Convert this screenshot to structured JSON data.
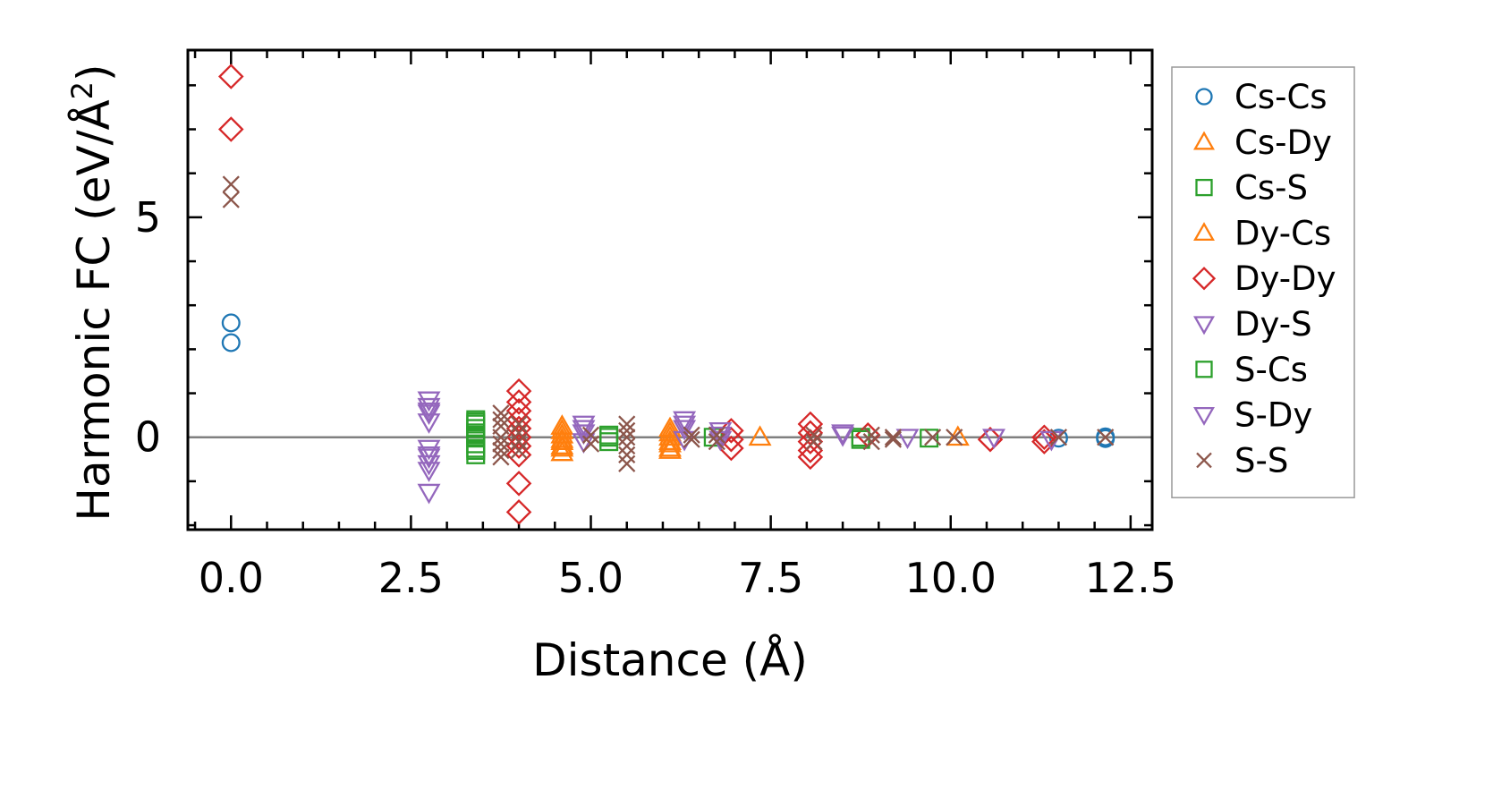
{
  "chart_data": {
    "type": "scatter",
    "title": "",
    "xlabel": "Distance (Å)",
    "ylabel_main": "Harmonic FC (eV/Å",
    "ylabel_sup": "2",
    "ylabel_close": ")",
    "xlim": [
      -0.6,
      12.8
    ],
    "ylim": [
      -2.1,
      8.8
    ],
    "xticks": [
      {
        "value": 0.0,
        "label": "0.0"
      },
      {
        "value": 2.5,
        "label": "2.5"
      },
      {
        "value": 5.0,
        "label": "5.0"
      },
      {
        "value": 7.5,
        "label": "7.5"
      },
      {
        "value": 10.0,
        "label": "10.0"
      },
      {
        "value": 12.5,
        "label": "12.5"
      }
    ],
    "yticks": [
      {
        "value": 0,
        "label": "0"
      },
      {
        "value": 5,
        "label": "5"
      }
    ],
    "zero_line": 0,
    "legend_position": "right",
    "series": [
      {
        "name": "Cs-Cs",
        "color": "#1f77b4",
        "marker": "circle",
        "x": [
          0,
          0,
          11.5,
          12.15,
          12.15
        ],
        "y": [
          2.6,
          2.15,
          -0.02,
          -0.03,
          0.01
        ]
      },
      {
        "name": "Cs-Dy",
        "color": "#ff7f0e",
        "marker": "triangle-up",
        "x": [
          4.6,
          4.6,
          4.6,
          4.6,
          4.6,
          6.1,
          6.1,
          6.1,
          6.1,
          7.35,
          10.1
        ],
        "y": [
          0.25,
          0.05,
          -0.1,
          -0.25,
          -0.35,
          0.2,
          0.0,
          -0.15,
          -0.25,
          0.0,
          0.0
        ]
      },
      {
        "name": "Cs-S",
        "color": "#2ca02c",
        "marker": "square",
        "x": [
          3.4,
          3.4,
          3.4,
          3.4,
          3.4,
          3.4,
          3.4,
          3.4,
          5.25,
          5.25,
          6.7,
          8.75,
          9.7
        ],
        "y": [
          0.4,
          0.3,
          0.2,
          0.1,
          0.0,
          -0.15,
          -0.25,
          -0.4,
          0.05,
          -0.1,
          0.0,
          0.0,
          -0.02
        ]
      },
      {
        "name": "Dy-Cs",
        "color": "#ff7f0e",
        "marker": "triangle-up",
        "x": [
          4.6,
          4.6,
          4.6,
          6.1,
          6.1,
          6.1
        ],
        "y": [
          0.15,
          -0.05,
          -0.2,
          0.1,
          -0.1,
          -0.3
        ]
      },
      {
        "name": "Dy-Dy",
        "color": "#d62728",
        "marker": "diamond",
        "x": [
          0,
          0,
          4.0,
          4.0,
          4.0,
          4.0,
          4.0,
          4.0,
          4.0,
          4.0,
          4.0,
          4.0,
          6.95,
          6.95,
          6.95,
          8.05,
          8.05,
          8.05,
          8.05,
          8.05,
          8.85,
          10.55,
          11.3,
          11.3
        ],
        "y": [
          8.2,
          7.0,
          1.05,
          0.8,
          0.6,
          0.4,
          0.2,
          0.0,
          -0.2,
          -0.4,
          -1.05,
          -1.7,
          0.15,
          -0.05,
          -0.25,
          0.3,
          0.1,
          -0.1,
          -0.3,
          -0.45,
          0.05,
          -0.05,
          0.0,
          -0.1
        ]
      },
      {
        "name": "Dy-S",
        "color": "#9467bd",
        "marker": "triangle-down",
        "x": [
          2.75,
          2.75,
          2.75,
          2.75,
          2.75,
          2.75,
          2.75,
          2.75,
          2.75,
          4.9,
          4.9,
          4.9,
          6.3,
          6.3,
          6.3,
          6.8,
          6.8,
          8.5,
          10.6
        ],
        "y": [
          0.85,
          0.7,
          0.55,
          0.35,
          -0.25,
          -0.45,
          -0.6,
          -0.75,
          -1.25,
          0.3,
          0.1,
          -0.1,
          0.4,
          0.2,
          -0.05,
          0.15,
          -0.05,
          0.1,
          0.0
        ]
      },
      {
        "name": "S-Cs",
        "color": "#2ca02c",
        "marker": "square",
        "x": [
          3.4,
          3.4,
          3.4,
          5.25,
          8.75
        ],
        "y": [
          0.35,
          0.05,
          -0.3,
          0.0,
          -0.05
        ]
      },
      {
        "name": "S-Dy",
        "color": "#9467bd",
        "marker": "triangle-down",
        "x": [
          2.75,
          2.75,
          4.9,
          6.3,
          6.8,
          8.5,
          9.4,
          11.4
        ],
        "y": [
          0.6,
          -0.4,
          0.2,
          0.3,
          0.05,
          0.05,
          0.0,
          -0.05
        ]
      },
      {
        "name": "S-S",
        "color": "#8c564b",
        "marker": "x",
        "x": [
          0,
          0,
          3.75,
          3.75,
          3.75,
          3.75,
          3.75,
          3.75,
          3.75,
          4.0,
          4.0,
          4.0,
          4.0,
          5.0,
          5.0,
          5.5,
          5.5,
          5.5,
          5.5,
          5.5,
          5.5,
          6.4,
          6.4,
          6.75,
          6.75,
          8.1,
          8.1,
          8.9,
          8.9,
          9.2,
          9.2,
          9.75,
          10.05,
          11.5,
          12.15
        ],
        "y": [
          5.75,
          5.4,
          0.55,
          0.4,
          0.25,
          0.0,
          -0.15,
          -0.3,
          -0.45,
          0.3,
          0.1,
          -0.1,
          -0.3,
          0.05,
          -0.15,
          0.3,
          0.15,
          0.0,
          -0.2,
          -0.4,
          -0.6,
          0.05,
          -0.05,
          0.05,
          -0.1,
          0.05,
          -0.1,
          0.05,
          -0.1,
          0.0,
          -0.05,
          0.0,
          0.0,
          0.0,
          0.0
        ]
      }
    ]
  }
}
